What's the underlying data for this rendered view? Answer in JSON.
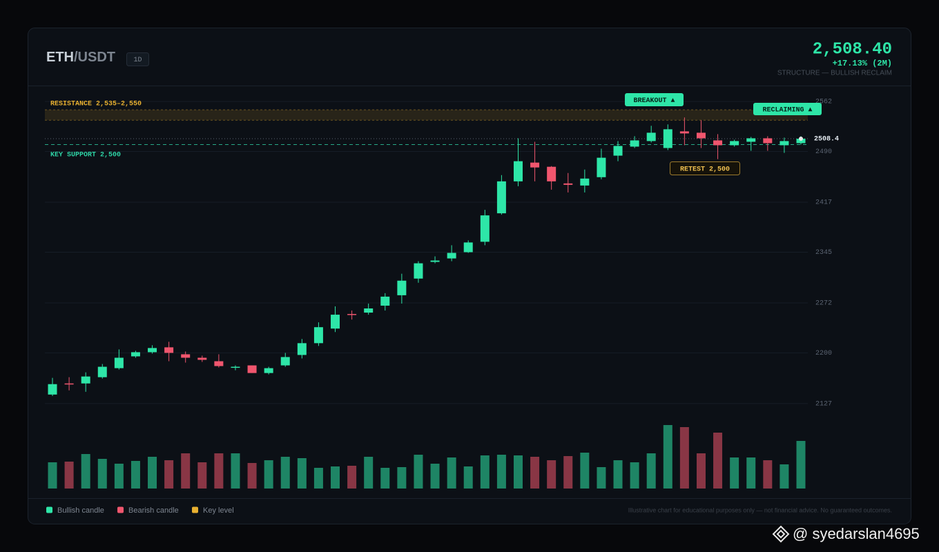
{
  "header": {
    "base": "ETH",
    "quote": "/USDT",
    "interval": "1D",
    "price": "2,508.40",
    "change": "+17.13% (2M)",
    "structure": "STRUCTURE — BULLISH RECLAIM"
  },
  "chart_data": {
    "type": "candlestick",
    "bullish_color": "#2ee6a8",
    "bearish_color": "#f0566e",
    "ylim": [
      2112,
      2574
    ],
    "yticks": [
      2127,
      2200,
      2272,
      2345,
      2417,
      2490,
      2562
    ],
    "grid": true,
    "open": [
      2140,
      2156,
      2156,
      2165,
      2178,
      2195,
      2201,
      2208,
      2198,
      2193,
      2188,
      2179,
      2182,
      2171,
      2182,
      2197,
      2214,
      2235,
      2256,
      2258,
      2268,
      2283,
      2307,
      2331,
      2336,
      2345,
      2360,
      2401,
      2447,
      2474,
      2468,
      2444,
      2441,
      2453,
      2484,
      2497,
      2505,
      2495,
      2519,
      2517,
      2506,
      2499,
      2504,
      2509,
      2499,
      2502
    ],
    "high": [
      2164,
      2165,
      2172,
      2184,
      2205,
      2203,
      2211,
      2216,
      2202,
      2196,
      2198,
      2182,
      2182,
      2180,
      2200,
      2220,
      2244,
      2267,
      2261,
      2271,
      2286,
      2314,
      2332,
      2339,
      2355,
      2362,
      2406,
      2456,
      2509,
      2504,
      2469,
      2459,
      2464,
      2494,
      2505,
      2512,
      2527,
      2529,
      2539,
      2535,
      2515,
      2507,
      2511,
      2512,
      2510,
      2512
    ],
    "low": [
      2138,
      2146,
      2144,
      2163,
      2176,
      2193,
      2199,
      2188,
      2186,
      2187,
      2179,
      2175,
      2171,
      2169,
      2180,
      2192,
      2210,
      2230,
      2248,
      2255,
      2261,
      2271,
      2301,
      2329,
      2332,
      2344,
      2355,
      2399,
      2440,
      2447,
      2435,
      2431,
      2431,
      2450,
      2476,
      2495,
      2503,
      2492,
      2499,
      2495,
      2479,
      2497,
      2491,
      2491,
      2488,
      2500
    ],
    "close": [
      2155,
      2155,
      2166,
      2180,
      2193,
      2201,
      2207,
      2200,
      2193,
      2190,
      2181,
      2180,
      2171,
      2178,
      2194,
      2214,
      2237,
      2255,
      2255,
      2264,
      2281,
      2304,
      2329,
      2333,
      2344,
      2359,
      2398,
      2447,
      2476,
      2467,
      2447,
      2442,
      2451,
      2481,
      2498,
      2506,
      2517,
      2522,
      2516,
      2509,
      2499,
      2505,
      2509,
      2502,
      2505,
      2508.4
    ],
    "volume": [
      38,
      39,
      50,
      43,
      36,
      40,
      46,
      41,
      51,
      38,
      51,
      51,
      37,
      41,
      46,
      44,
      30,
      32,
      33,
      46,
      30,
      31,
      49,
      36,
      45,
      32,
      48,
      49,
      48,
      46,
      41,
      47,
      52,
      31,
      41,
      38,
      51,
      92,
      89,
      51,
      81,
      45,
      45,
      41,
      35,
      69
    ],
    "resistance": {
      "label": "RESISTANCE  2,535–2,550",
      "range": [
        2535,
        2550
      ],
      "color": "#e8b030"
    },
    "support": {
      "label": "KEY SUPPORT  2,500",
      "value": 2500,
      "color": "#2ed3a5"
    },
    "annotations": {
      "breakout": "BREAKOUT ▲",
      "reclaiming": "RECLAIMING ▲",
      "retest": "RETEST 2,500"
    },
    "legend": [
      {
        "name": "Bullish candle",
        "color": "#2ee6a8"
      },
      {
        "name": "Bearish candle",
        "color": "#f0566e"
      },
      {
        "name": "Key level",
        "color": "#e8b030"
      }
    ],
    "disclaimer": "Illustrative chart for educational purposes only — not financial advice. No guaranteed outcomes."
  },
  "watermark": "@ syedarslan4695"
}
